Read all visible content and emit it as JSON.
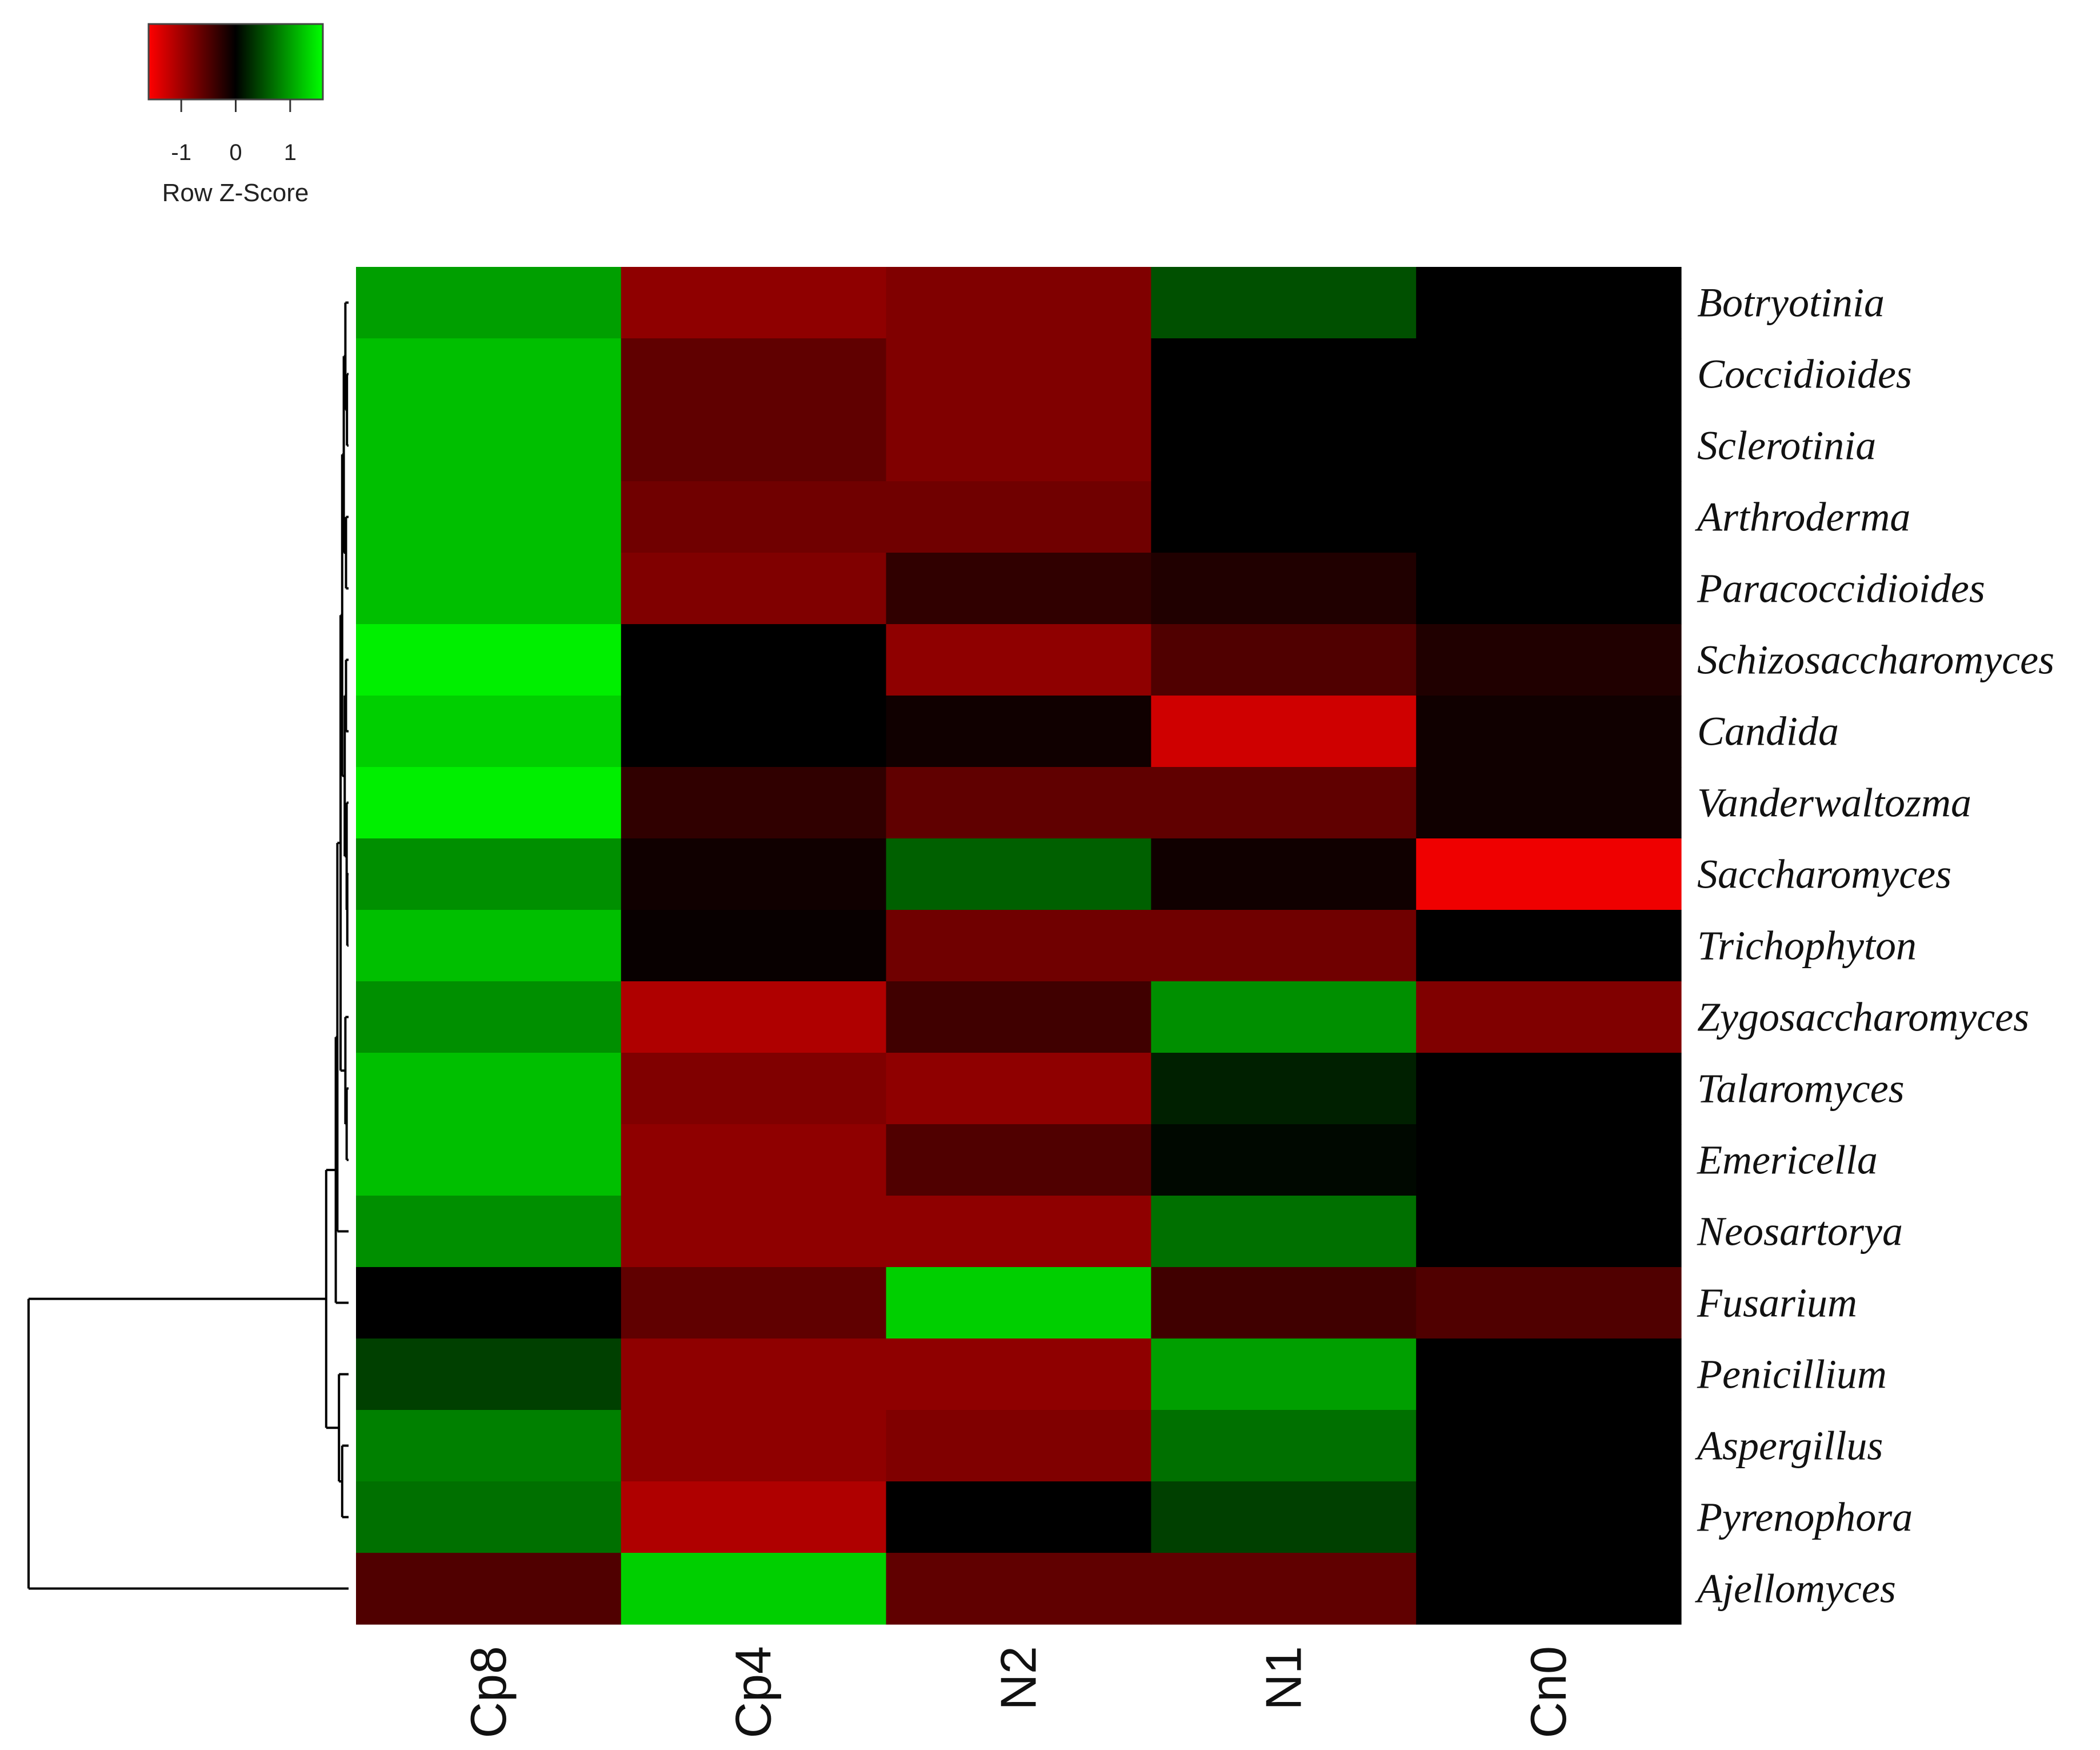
{
  "chart_data": {
    "type": "heatmap",
    "columns": [
      "Cp8",
      "Cp4",
      "N2",
      "N1",
      "Cn0"
    ],
    "rows": [
      "Botryotinia",
      "Coccidioides",
      "Sclerotinia",
      "Arthroderma",
      "Paracoccidioides",
      "Schizosaccharomyces",
      "Candida",
      "Vanderwaltozma",
      "Saccharomyces",
      "Trichophyton",
      "Zygosaccharomyces",
      "Talaromyces",
      "Emericella",
      "Neosartorya",
      "Fusarium",
      "Penicillium",
      "Aspergillus",
      "Pyrenophora",
      "Ajellomyces"
    ],
    "values": [
      [
        1.0,
        -0.9,
        -0.8,
        0.5,
        0.0
      ],
      [
        1.2,
        -0.6,
        -0.8,
        0.0,
        0.0
      ],
      [
        1.2,
        -0.6,
        -0.8,
        0.0,
        0.0
      ],
      [
        1.2,
        -0.7,
        -0.7,
        0.0,
        0.0
      ],
      [
        1.2,
        -0.8,
        -0.3,
        -0.2,
        0.0
      ],
      [
        1.5,
        0.0,
        -0.9,
        -0.5,
        -0.2
      ],
      [
        1.3,
        0.0,
        -0.1,
        -1.3,
        -0.1
      ],
      [
        1.5,
        -0.3,
        -0.6,
        -0.6,
        -0.1
      ],
      [
        0.9,
        -0.1,
        0.6,
        -0.1,
        -1.5
      ],
      [
        1.2,
        -0.05,
        -0.7,
        -0.7,
        0.0
      ],
      [
        0.9,
        -1.1,
        -0.4,
        0.9,
        -0.8
      ],
      [
        1.2,
        -0.8,
        -0.9,
        0.2,
        0.0
      ],
      [
        1.2,
        -0.9,
        -0.5,
        0.05,
        0.0
      ],
      [
        0.9,
        -0.9,
        -0.9,
        0.7,
        0.0
      ],
      [
        0.0,
        -0.6,
        1.3,
        -0.4,
        -0.5
      ],
      [
        0.4,
        -0.9,
        -0.9,
        1.0,
        0.0
      ],
      [
        0.8,
        -0.9,
        -0.8,
        0.7,
        0.0
      ],
      [
        0.7,
        -1.1,
        0.0,
        0.4,
        0.0
      ],
      [
        -0.5,
        1.3,
        -0.6,
        -0.6,
        0.0
      ]
    ],
    "color_scale": {
      "low": "#ff0000",
      "mid": "#000000",
      "high": "#00ff00",
      "min": -1.6,
      "max": 1.6
    },
    "color_key": {
      "ticks": [
        -1,
        0,
        1
      ],
      "title": "Row Z-Score"
    },
    "row_dendrogram": true
  }
}
